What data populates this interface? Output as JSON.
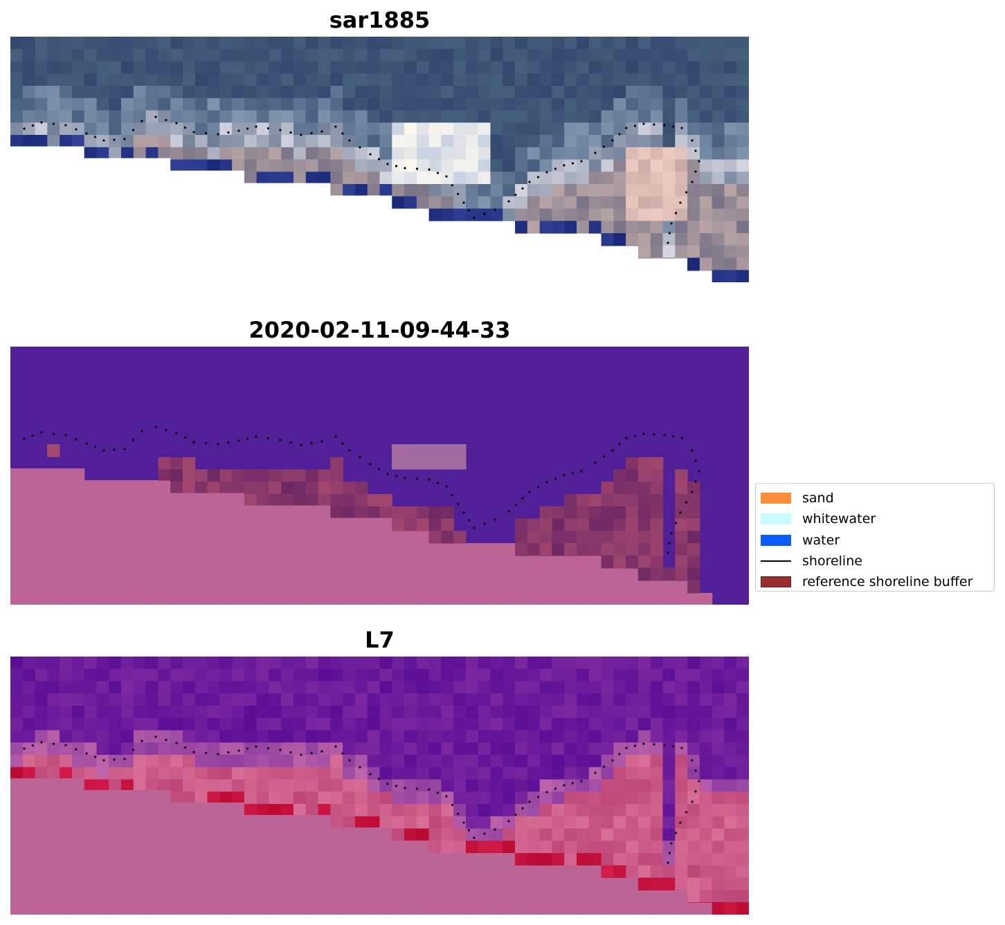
{
  "panels": [
    {
      "title": "sar1885",
      "kind": "rgb"
    },
    {
      "title": "2020-02-11-09-44-33",
      "kind": "classified"
    },
    {
      "title": "L7",
      "kind": "index"
    }
  ],
  "legend": {
    "items": [
      {
        "label": "sand",
        "type": "patch",
        "color": "#ff8c3a"
      },
      {
        "label": "whitewater",
        "type": "patch",
        "color": "#c8fcfc"
      },
      {
        "label": "water",
        "type": "patch",
        "color": "#0a5cff"
      },
      {
        "label": "shoreline",
        "type": "line",
        "color": "#000000"
      },
      {
        "label": "reference shoreline buffer",
        "type": "patch",
        "color": "#9a2e2e",
        "edge": "#6e1a1a"
      }
    ]
  },
  "colors": {
    "nodata": "#ffffff",
    "masked_pink": "#bb6495",
    "water_purple": "#512098",
    "shoreline_dots": "#000000"
  }
}
